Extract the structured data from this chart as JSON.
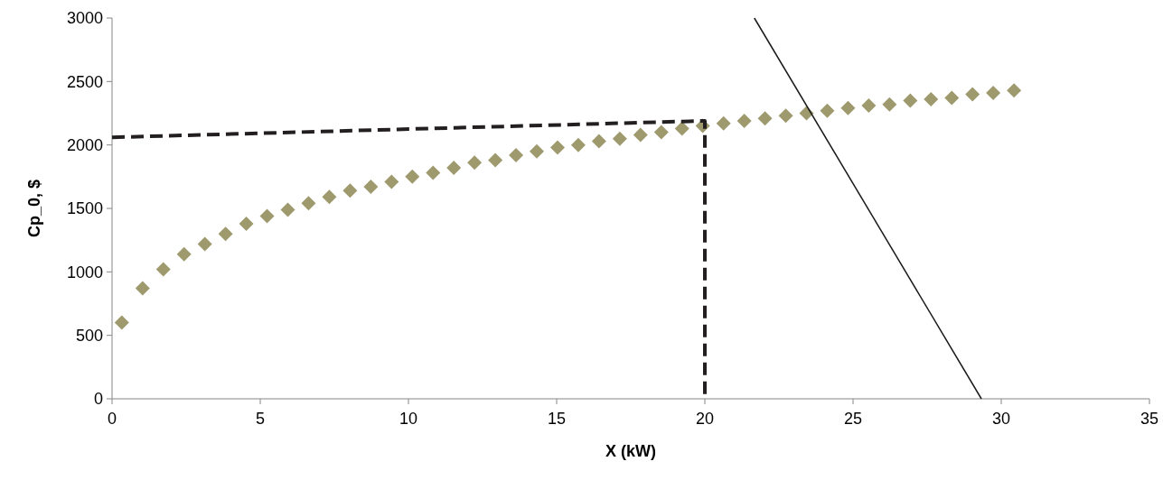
{
  "chart_data": {
    "type": "scatter",
    "xlabel": "X (kW)",
    "ylabel": "Cp_0, $",
    "xlim": [
      0,
      35
    ],
    "xticks": [
      0,
      5,
      10,
      15,
      20,
      25,
      30,
      35
    ],
    "ylim": [
      0,
      3000
    ],
    "yticks": [
      0,
      500,
      1000,
      1500,
      2000,
      2500,
      3000
    ],
    "grid": false,
    "series": [
      {
        "marker": "diamond",
        "color": "#9e9a6e",
        "x": [
          0.33,
          1.03,
          1.73,
          2.43,
          3.13,
          3.83,
          4.53,
          5.23,
          5.93,
          6.63,
          7.33,
          8.03,
          8.73,
          9.43,
          10.13,
          10.83,
          11.53,
          12.23,
          12.93,
          13.63,
          14.33,
          15.03,
          15.73,
          16.43,
          17.13,
          17.83,
          18.53,
          19.23,
          19.93,
          20.63,
          21.33,
          22.03,
          22.73,
          23.43,
          24.13,
          24.83,
          25.53,
          26.23,
          26.93,
          27.63,
          28.33,
          29.03,
          29.73,
          30.43
        ],
        "values": [
          600,
          870,
          1020,
          1140,
          1220,
          1300,
          1380,
          1440,
          1490,
          1540,
          1590,
          1640,
          1670,
          1710,
          1750,
          1780,
          1820,
          1860,
          1880,
          1920,
          1950,
          1980,
          2000,
          2030,
          2050,
          2080,
          2100,
          2130,
          2150,
          2170,
          2190,
          2210,
          2230,
          2250,
          2270,
          2290,
          2310,
          2320,
          2350,
          2360,
          2370,
          2400,
          2410,
          2430
        ]
      },
      {
        "type": "line",
        "marker": "none",
        "line_style": "dashed",
        "color": "#231f20",
        "x": [
          0,
          20,
          20
        ],
        "values": [
          2060,
          2190,
          0
        ]
      },
      {
        "type": "line",
        "marker": "none",
        "line_style": "solid",
        "color": "#1a1a1a",
        "x": [
          21.67,
          29.33
        ],
        "values": [
          3000,
          0
        ]
      }
    ]
  }
}
